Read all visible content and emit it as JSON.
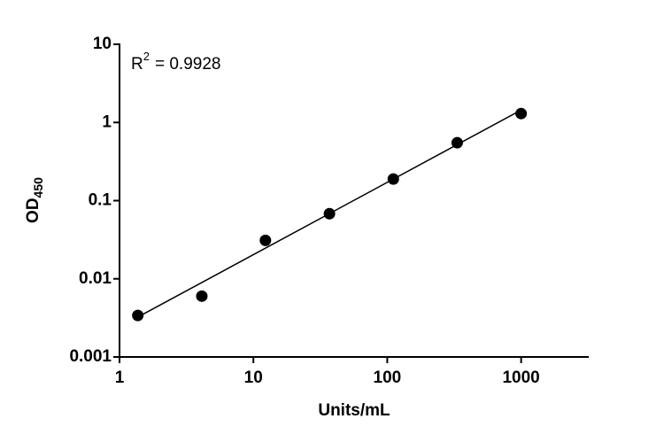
{
  "chart_data": {
    "type": "scatter",
    "x_label": "Units/mL",
    "y_label": {
      "base": "OD",
      "sub": "450"
    },
    "annotation": {
      "base": "R",
      "sup": "2",
      "text": "= 0.9928"
    },
    "x": [
      1.37,
      4.12,
      12.3,
      37.0,
      111,
      333,
      1000
    ],
    "values": [
      0.0034,
      0.006,
      0.031,
      0.068,
      0.189,
      0.55,
      1.3
    ],
    "color": "#000000",
    "fit": {
      "x": [
        1.37,
        1000
      ],
      "y": [
        0.00324,
        1.44
      ]
    },
    "xscale": "log",
    "yscale": "log",
    "xlim": [
      1,
      3200
    ],
    "ylim": [
      0.001,
      10
    ],
    "xticks": [
      1,
      10,
      100,
      1000
    ],
    "yticks": [
      0.001,
      0.01,
      0.1,
      1,
      10
    ]
  }
}
